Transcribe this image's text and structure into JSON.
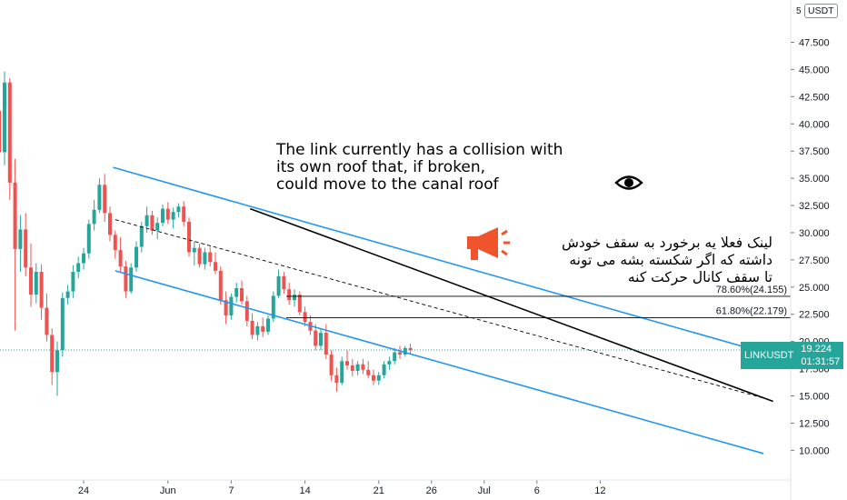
{
  "chart_data": {
    "type": "candlestick",
    "symbol": "LINKUSDT",
    "currency_badge": "USDT",
    "last_price": "19.224",
    "countdown": "01:31:57",
    "y_axis": {
      "ticks": [
        "47.500",
        "45.000",
        "42.500",
        "40.000",
        "37.500",
        "35.000",
        "32.500",
        "30.000",
        "27.500",
        "25.000",
        "22.500",
        "20.000",
        "17.500",
        "15.000",
        "12.500",
        "10.000"
      ],
      "ylim": [
        7.5,
        50
      ]
    },
    "x_axis": {
      "ticks": [
        {
          "label": "24",
          "day": 0
        },
        {
          "label": "Jun",
          "day": 8
        },
        {
          "label": "7",
          "day": 14
        },
        {
          "label": "14",
          "day": 21
        },
        {
          "label": "21",
          "day": 28
        },
        {
          "label": "26",
          "day": 33
        },
        {
          "label": "Jul",
          "day": 38
        },
        {
          "label": "6",
          "day": 43
        },
        {
          "label": "12",
          "day": 49
        }
      ]
    },
    "fib_levels": [
      {
        "label": "78.60%(24.155)",
        "value": 24.155
      },
      {
        "label": "61.80%(22.179)",
        "value": 22.179
      }
    ],
    "channel": {
      "upper": [
        [
          2.8,
          36.0
        ],
        [
          64.5,
          19.0
        ]
      ],
      "lower": [
        [
          3.0,
          26.5
        ],
        [
          64.5,
          9.7
        ]
      ],
      "mid": [
        [
          3.0,
          31.2
        ],
        [
          64.5,
          14.8
        ]
      ]
    },
    "resistance": [
      [
        15.8,
        32.2
      ],
      [
        65.4,
        14.5
      ]
    ],
    "candles": [
      [
        -9,
        38.5,
        41.8,
        37.2,
        41.2
      ],
      [
        -8,
        41.2,
        43.0,
        36.5,
        37.4
      ],
      [
        -7.5,
        37.4,
        44.8,
        36.2,
        43.8
      ],
      [
        -7,
        43.8,
        44.2,
        33.0,
        34.6
      ],
      [
        -6.5,
        34.6,
        36.8,
        21.0,
        28.5
      ],
      [
        -6,
        28.5,
        31.6,
        26.4,
        30.3
      ],
      [
        -5.5,
        30.3,
        31.8,
        26.0,
        26.8
      ],
      [
        -5,
        26.8,
        29.0,
        23.2,
        24.3
      ],
      [
        -4.5,
        24.3,
        27.2,
        23.5,
        26.4
      ],
      [
        -4,
        26.4,
        27.1,
        22.0,
        23.1
      ],
      [
        -3.5,
        23.1,
        24.4,
        20.0,
        20.6
      ],
      [
        -3,
        20.6,
        21.2,
        16.0,
        17.2
      ],
      [
        -2.5,
        17.2,
        20.0,
        15.0,
        19.2
      ],
      [
        -2,
        19.2,
        24.5,
        18.6,
        24.0
      ],
      [
        -1.5,
        24.0,
        25.2,
        23.4,
        24.6
      ],
      [
        -1,
        24.6,
        27.0,
        24.0,
        26.4
      ],
      [
        -0.5,
        26.4,
        27.8,
        25.8,
        27.2
      ],
      [
        0,
        27.2,
        28.6,
        26.6,
        28.1
      ],
      [
        0.5,
        28.1,
        31.2,
        27.6,
        30.8
      ],
      [
        1,
        30.8,
        33.0,
        30.2,
        32.1
      ],
      [
        1.5,
        32.1,
        35.0,
        31.8,
        34.4
      ],
      [
        2,
        34.4,
        35.4,
        31.0,
        31.8
      ],
      [
        2.5,
        31.8,
        32.4,
        29.2,
        29.8
      ],
      [
        3,
        29.8,
        30.2,
        27.6,
        28.4
      ],
      [
        3.5,
        28.4,
        29.6,
        26.4,
        26.9
      ],
      [
        4,
        26.9,
        27.4,
        24.0,
        24.6
      ],
      [
        4.5,
        24.6,
        27.2,
        24.4,
        26.8
      ],
      [
        5,
        26.8,
        29.2,
        26.4,
        28.7
      ],
      [
        5.5,
        28.7,
        31.0,
        28.2,
        30.6
      ],
      [
        6,
        30.6,
        32.4,
        30.0,
        31.6
      ],
      [
        6.5,
        31.6,
        32.0,
        29.8,
        30.2
      ],
      [
        7,
        30.2,
        31.4,
        29.4,
        30.9
      ],
      [
        7.5,
        30.9,
        32.6,
        30.6,
        32.2
      ],
      [
        8,
        32.2,
        32.8,
        30.8,
        31.2
      ],
      [
        8.5,
        31.2,
        32.3,
        30.4,
        31.9
      ],
      [
        9,
        31.9,
        32.7,
        31.4,
        32.4
      ],
      [
        9.5,
        32.4,
        32.9,
        30.6,
        31.0
      ],
      [
        10,
        31.0,
        31.4,
        27.8,
        28.2
      ],
      [
        10.5,
        28.2,
        29.2,
        27.0,
        28.6
      ],
      [
        11,
        28.6,
        29.0,
        26.8,
        27.1
      ],
      [
        11.5,
        27.1,
        28.6,
        26.6,
        28.2
      ],
      [
        12,
        28.2,
        28.7,
        26.9,
        27.3
      ],
      [
        12.5,
        27.3,
        28.2,
        26.2,
        26.5
      ],
      [
        13,
        26.5,
        26.9,
        23.4,
        23.8
      ],
      [
        13.5,
        23.8,
        24.6,
        21.6,
        22.4
      ],
      [
        14,
        22.4,
        24.4,
        22.0,
        24.1
      ],
      [
        14.5,
        24.1,
        25.4,
        23.6,
        24.9
      ],
      [
        15,
        24.9,
        25.6,
        23.4,
        23.7
      ],
      [
        15.5,
        23.7,
        24.2,
        21.4,
        21.9
      ],
      [
        16,
        21.9,
        22.6,
        20.2,
        20.6
      ],
      [
        16.5,
        20.6,
        21.8,
        20.1,
        21.4
      ],
      [
        17,
        21.4,
        22.2,
        20.4,
        20.9
      ],
      [
        17.5,
        20.9,
        22.4,
        20.6,
        22.1
      ],
      [
        18,
        22.1,
        24.6,
        21.8,
        24.2
      ],
      [
        18.5,
        24.2,
        26.6,
        24.0,
        26.0
      ],
      [
        19,
        26.0,
        26.4,
        24.4,
        24.8
      ],
      [
        19.5,
        24.8,
        25.4,
        23.4,
        23.8
      ],
      [
        20,
        23.8,
        24.8,
        23.2,
        24.3
      ],
      [
        20.5,
        24.3,
        24.6,
        22.4,
        22.7
      ],
      [
        21,
        22.7,
        23.2,
        21.4,
        21.8
      ],
      [
        21.5,
        21.8,
        22.4,
        20.6,
        21.0
      ],
      [
        22,
        21.0,
        21.6,
        19.2,
        19.6
      ],
      [
        22.5,
        19.6,
        21.2,
        19.2,
        20.8
      ],
      [
        23,
        20.8,
        21.6,
        18.4,
        18.8
      ],
      [
        23.5,
        18.8,
        19.2,
        16.4,
        16.9
      ],
      [
        24,
        16.9,
        17.6,
        15.4,
        16.2
      ],
      [
        24.5,
        16.2,
        18.6,
        16.0,
        18.2
      ],
      [
        25,
        18.2,
        19.2,
        17.4,
        17.8
      ],
      [
        25.5,
        17.8,
        18.4,
        16.8,
        17.3
      ],
      [
        26,
        17.3,
        18.2,
        16.9,
        17.9
      ],
      [
        26.5,
        17.9,
        18.4,
        17.0,
        17.4
      ],
      [
        27,
        17.4,
        18.2,
        16.6,
        16.9
      ],
      [
        27.5,
        16.9,
        17.4,
        16.0,
        16.4
      ],
      [
        28,
        16.4,
        17.2,
        16.0,
        16.9
      ],
      [
        28.5,
        16.9,
        18.2,
        16.6,
        17.9
      ],
      [
        29,
        17.9,
        18.6,
        17.4,
        18.2
      ],
      [
        29.5,
        18.2,
        19.4,
        17.9,
        19.0
      ],
      [
        30,
        19.0,
        19.6,
        18.4,
        18.8
      ],
      [
        30.5,
        18.8,
        19.6,
        18.6,
        19.4
      ],
      [
        31,
        19.4,
        19.8,
        18.9,
        19.224
      ]
    ]
  },
  "notes": {
    "english": [
      "The link currently has a collision with",
      "its own roof that, if broken,",
      "could move to the canal roof"
    ],
    "persian": [
      "لینک فعلا یه برخورد به سقف خودش",
      "داشته که اگر شکسته بشه می تونه",
      "تا سقف کانال حرکت کنه"
    ]
  },
  "icons": {
    "eye": "eye-icon",
    "megaphone": "megaphone-icon"
  },
  "colors": {
    "up": "#26a69a",
    "down": "#ef5350",
    "channel": "#2196f3",
    "resistance": "#000000",
    "price_tag": "#26a69a",
    "megaphone": "#f0542d"
  }
}
